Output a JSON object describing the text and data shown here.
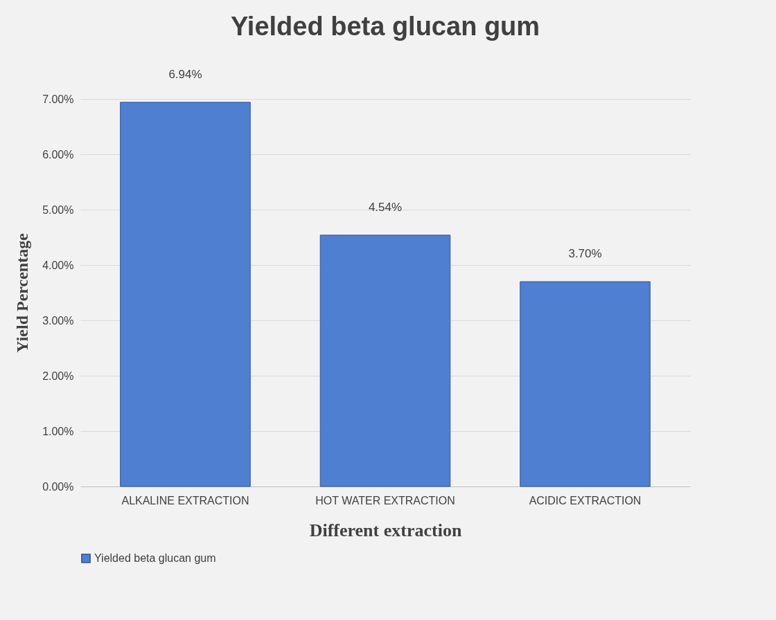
{
  "chart_data": {
    "type": "bar",
    "title": "Yielded beta glucan gum",
    "xlabel": "Different extraction",
    "ylabel": "Yield Percentage",
    "categories": [
      "ALKALINE EXTRACTION",
      "HOT WATER EXTRACTION",
      "ACIDIC EXTRACTION"
    ],
    "series": [
      {
        "name": "Yielded beta glucan gum",
        "color": "#4f7fd0",
        "values": [
          6.94,
          4.54,
          3.7
        ],
        "value_labels": [
          "6.94%",
          "4.54%",
          "3.70%"
        ]
      }
    ],
    "ylim": [
      0,
      7
    ],
    "yticks": [
      {
        "value": 0,
        "label": "0.00%"
      },
      {
        "value": 1,
        "label": "1.00%"
      },
      {
        "value": 2,
        "label": "2.00%"
      },
      {
        "value": 3,
        "label": "3.00%"
      },
      {
        "value": 4,
        "label": "4.00%"
      },
      {
        "value": 5,
        "label": "5.00%"
      },
      {
        "value": 6,
        "label": "6.00%"
      },
      {
        "value": 7,
        "label": "7.00%"
      }
    ],
    "grid": "y",
    "legend": "bottom"
  }
}
